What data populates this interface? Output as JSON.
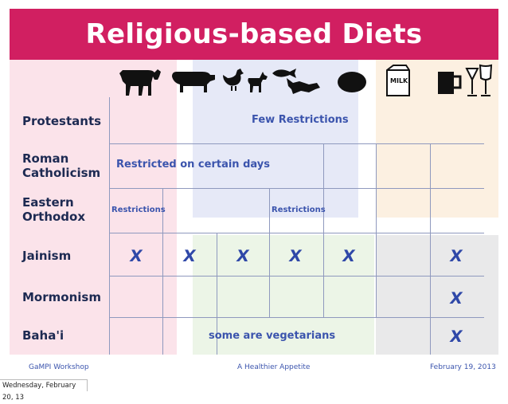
{
  "title": "Religious-based Diets",
  "icons": [
    "cow-icon",
    "pig-icon",
    "chicken-icon",
    "goat-icon",
    "fish-icon",
    "shellfish-icon",
    "egg-icon",
    "milk-carton-icon",
    "beer-mug-icon",
    "wine-glass-icon",
    "cocktail-glass-icon"
  ],
  "rows": [
    {
      "label": "Protestants"
    },
    {
      "label": "Roman\nCatholicism"
    },
    {
      "label": "Eastern\nOrthodox"
    },
    {
      "label": "Jainism"
    },
    {
      "label": "Mormonism"
    },
    {
      "label": "Baha'i"
    }
  ],
  "cells": {
    "protestants": "Few Restrictions",
    "catholic": "Restricted on certain days",
    "orthodox_a": "Restrictions",
    "orthodox_b": "Restrictions",
    "bahai": "some are vegetarians",
    "x": "X"
  },
  "footer": {
    "left": "GaMPI Workshop",
    "center": "A Healthier Appetite",
    "right": "February 19, 2013"
  },
  "timestamp": "Wednesday, February 20, 13",
  "colors": {
    "title_bg": "#d11f61",
    "pink_bg": "#fbe3ea",
    "blue_bg": "#e6e9f7",
    "green_bg": "#ecf5e7",
    "orange_bg": "#fcf0e1",
    "gray_bg": "#e9e9ea",
    "text_blue": "#3b54ad"
  }
}
